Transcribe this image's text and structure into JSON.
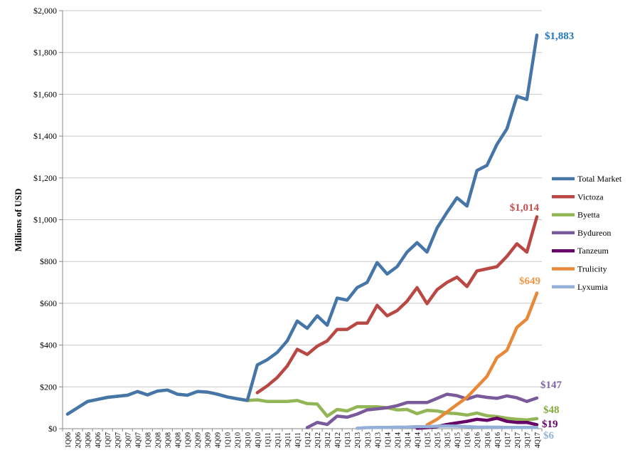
{
  "chart_data": {
    "type": "line",
    "title": "",
    "xlabel": "",
    "ylabel": "Millions of USD",
    "ylim": [
      0,
      2000
    ],
    "yticks": [
      "$0",
      "$200",
      "$400",
      "$600",
      "$800",
      "$1,000",
      "$1,200",
      "$1,400",
      "$1,600",
      "$1,800",
      "$2,000"
    ],
    "grid": "horizontal-major",
    "legend_position": "right",
    "categories": [
      "1Q06",
      "2Q06",
      "3Q06",
      "4Q06",
      "1Q07",
      "2Q07",
      "3Q07",
      "4Q07",
      "1Q08",
      "2Q08",
      "3Q08",
      "4Q08",
      "1Q09",
      "2Q09",
      "3Q09",
      "4Q09",
      "1Q10",
      "2Q10",
      "3Q10",
      "4Q10",
      "1Q11",
      "2Q11",
      "3Q11",
      "4Q11",
      "1Q12",
      "2Q12",
      "3Q12",
      "4Q12",
      "1Q13",
      "2Q13",
      "3Q13",
      "4Q13",
      "1Q14",
      "2Q14",
      "3Q14",
      "4Q14",
      "1Q15",
      "2Q15",
      "3Q15",
      "4Q15",
      "1Q16",
      "2Q16",
      "3Q16",
      "4Q16",
      "1Q17",
      "2Q17",
      "3Q17",
      "4Q17"
    ],
    "series": [
      {
        "name": "Total Market",
        "color": "#4675a8",
        "end_label": "$1,883",
        "label_color": "#1f77c4",
        "values": [
          70,
          100,
          130,
          140,
          150,
          155,
          160,
          178,
          162,
          180,
          185,
          165,
          160,
          178,
          175,
          165,
          152,
          143,
          135,
          305,
          330,
          365,
          420,
          515,
          480,
          540,
          495,
          625,
          615,
          675,
          700,
          795,
          740,
          775,
          845,
          890,
          845,
          960,
          1035,
          1105,
          1065,
          1235,
          1260,
          1360,
          1435,
          1590,
          1575,
          1883
        ]
      },
      {
        "name": "Victoza",
        "color": "#b94845",
        "end_label": "$1,014",
        "label_color": "#c0504d",
        "values": [
          null,
          null,
          null,
          null,
          null,
          null,
          null,
          null,
          null,
          null,
          null,
          null,
          null,
          null,
          null,
          null,
          null,
          null,
          null,
          172,
          205,
          245,
          300,
          380,
          355,
          395,
          420,
          475,
          475,
          505,
          505,
          590,
          540,
          565,
          610,
          675,
          598,
          665,
          700,
          725,
          680,
          755,
          765,
          775,
          825,
          885,
          845,
          1014
        ]
      },
      {
        "name": "Byetta",
        "color": "#92b556",
        "end_label": "$48",
        "label_color": "#7faa3c",
        "values": [
          70,
          100,
          130,
          140,
          150,
          155,
          160,
          178,
          162,
          180,
          185,
          165,
          160,
          178,
          175,
          165,
          152,
          143,
          135,
          138,
          130,
          130,
          130,
          135,
          120,
          118,
          60,
          92,
          85,
          105,
          105,
          105,
          100,
          90,
          92,
          72,
          88,
          85,
          75,
          72,
          65,
          75,
          62,
          58,
          50,
          45,
          42,
          48
        ]
      },
      {
        "name": "Bydureon",
        "color": "#7a5a9b",
        "end_label": "$147",
        "label_color": "#8064a2",
        "values": [
          null,
          null,
          null,
          null,
          null,
          null,
          null,
          null,
          null,
          null,
          null,
          null,
          null,
          null,
          null,
          null,
          null,
          null,
          null,
          null,
          null,
          null,
          null,
          null,
          5,
          30,
          20,
          60,
          55,
          70,
          90,
          95,
          100,
          110,
          125,
          125,
          125,
          145,
          165,
          158,
          142,
          157,
          150,
          145,
          157,
          148,
          130,
          147
        ]
      },
      {
        "name": "Tanzeum",
        "color": "#660066",
        "end_label": "$19",
        "label_color": "#660066",
        "values": [
          null,
          null,
          null,
          null,
          null,
          null,
          null,
          null,
          null,
          null,
          null,
          null,
          null,
          null,
          null,
          null,
          null,
          null,
          null,
          null,
          null,
          null,
          null,
          null,
          null,
          null,
          null,
          null,
          null,
          null,
          null,
          null,
          null,
          null,
          null,
          2,
          5,
          10,
          20,
          28,
          35,
          45,
          40,
          50,
          35,
          30,
          30,
          19
        ]
      },
      {
        "name": "Trulicity",
        "color": "#e8893a",
        "end_label": "$649",
        "label_color": "#f79646",
        "values": [
          null,
          null,
          null,
          null,
          null,
          null,
          null,
          null,
          null,
          null,
          null,
          null,
          null,
          null,
          null,
          null,
          null,
          null,
          null,
          null,
          null,
          null,
          null,
          null,
          null,
          null,
          null,
          null,
          null,
          null,
          null,
          null,
          null,
          null,
          null,
          null,
          18,
          45,
          80,
          115,
          150,
          200,
          250,
          340,
          375,
          485,
          525,
          649
        ]
      },
      {
        "name": "Lyxumia",
        "color": "#95b0d8",
        "end_label": "$6",
        "label_color": "#95b3d7",
        "values": [
          null,
          null,
          null,
          null,
          null,
          null,
          null,
          null,
          null,
          null,
          null,
          null,
          null,
          null,
          null,
          null,
          null,
          null,
          null,
          null,
          null,
          null,
          null,
          null,
          null,
          null,
          null,
          null,
          null,
          2,
          5,
          6,
          6,
          7,
          8,
          10,
          10,
          12,
          13,
          12,
          10,
          8,
          7,
          7,
          6,
          6,
          6,
          6
        ]
      }
    ],
    "x_tick_labels": [
      "1Q06",
      "2Q06",
      "3Q06",
      "4Q06",
      "1Q07",
      "2Q07",
      "3Q07",
      "4Q07",
      "1Q08",
      "2Q08",
      "3Q08",
      "4Q08",
      "1Q09",
      "2Q09",
      "3Q09",
      "4Q09",
      "1Q10",
      "2Q10",
      "3Q10",
      "4Q10",
      "1Q11",
      "2Q11",
      "3Q11",
      "4Q11",
      "1Q12",
      "2Q12",
      "3Q12",
      "4Q12",
      "1Q13",
      "2Q13",
      "3Q13",
      "4Q13",
      "1Q14",
      "2Q14",
      "3Q14",
      "4Q14",
      "1Q15",
      "2Q15",
      "3Q15",
      "4Q15",
      "1Q16",
      "2Q16",
      "3Q16",
      "4Q16",
      "1Q17",
      "2Q17",
      "3Q17",
      "4Q17"
    ]
  }
}
